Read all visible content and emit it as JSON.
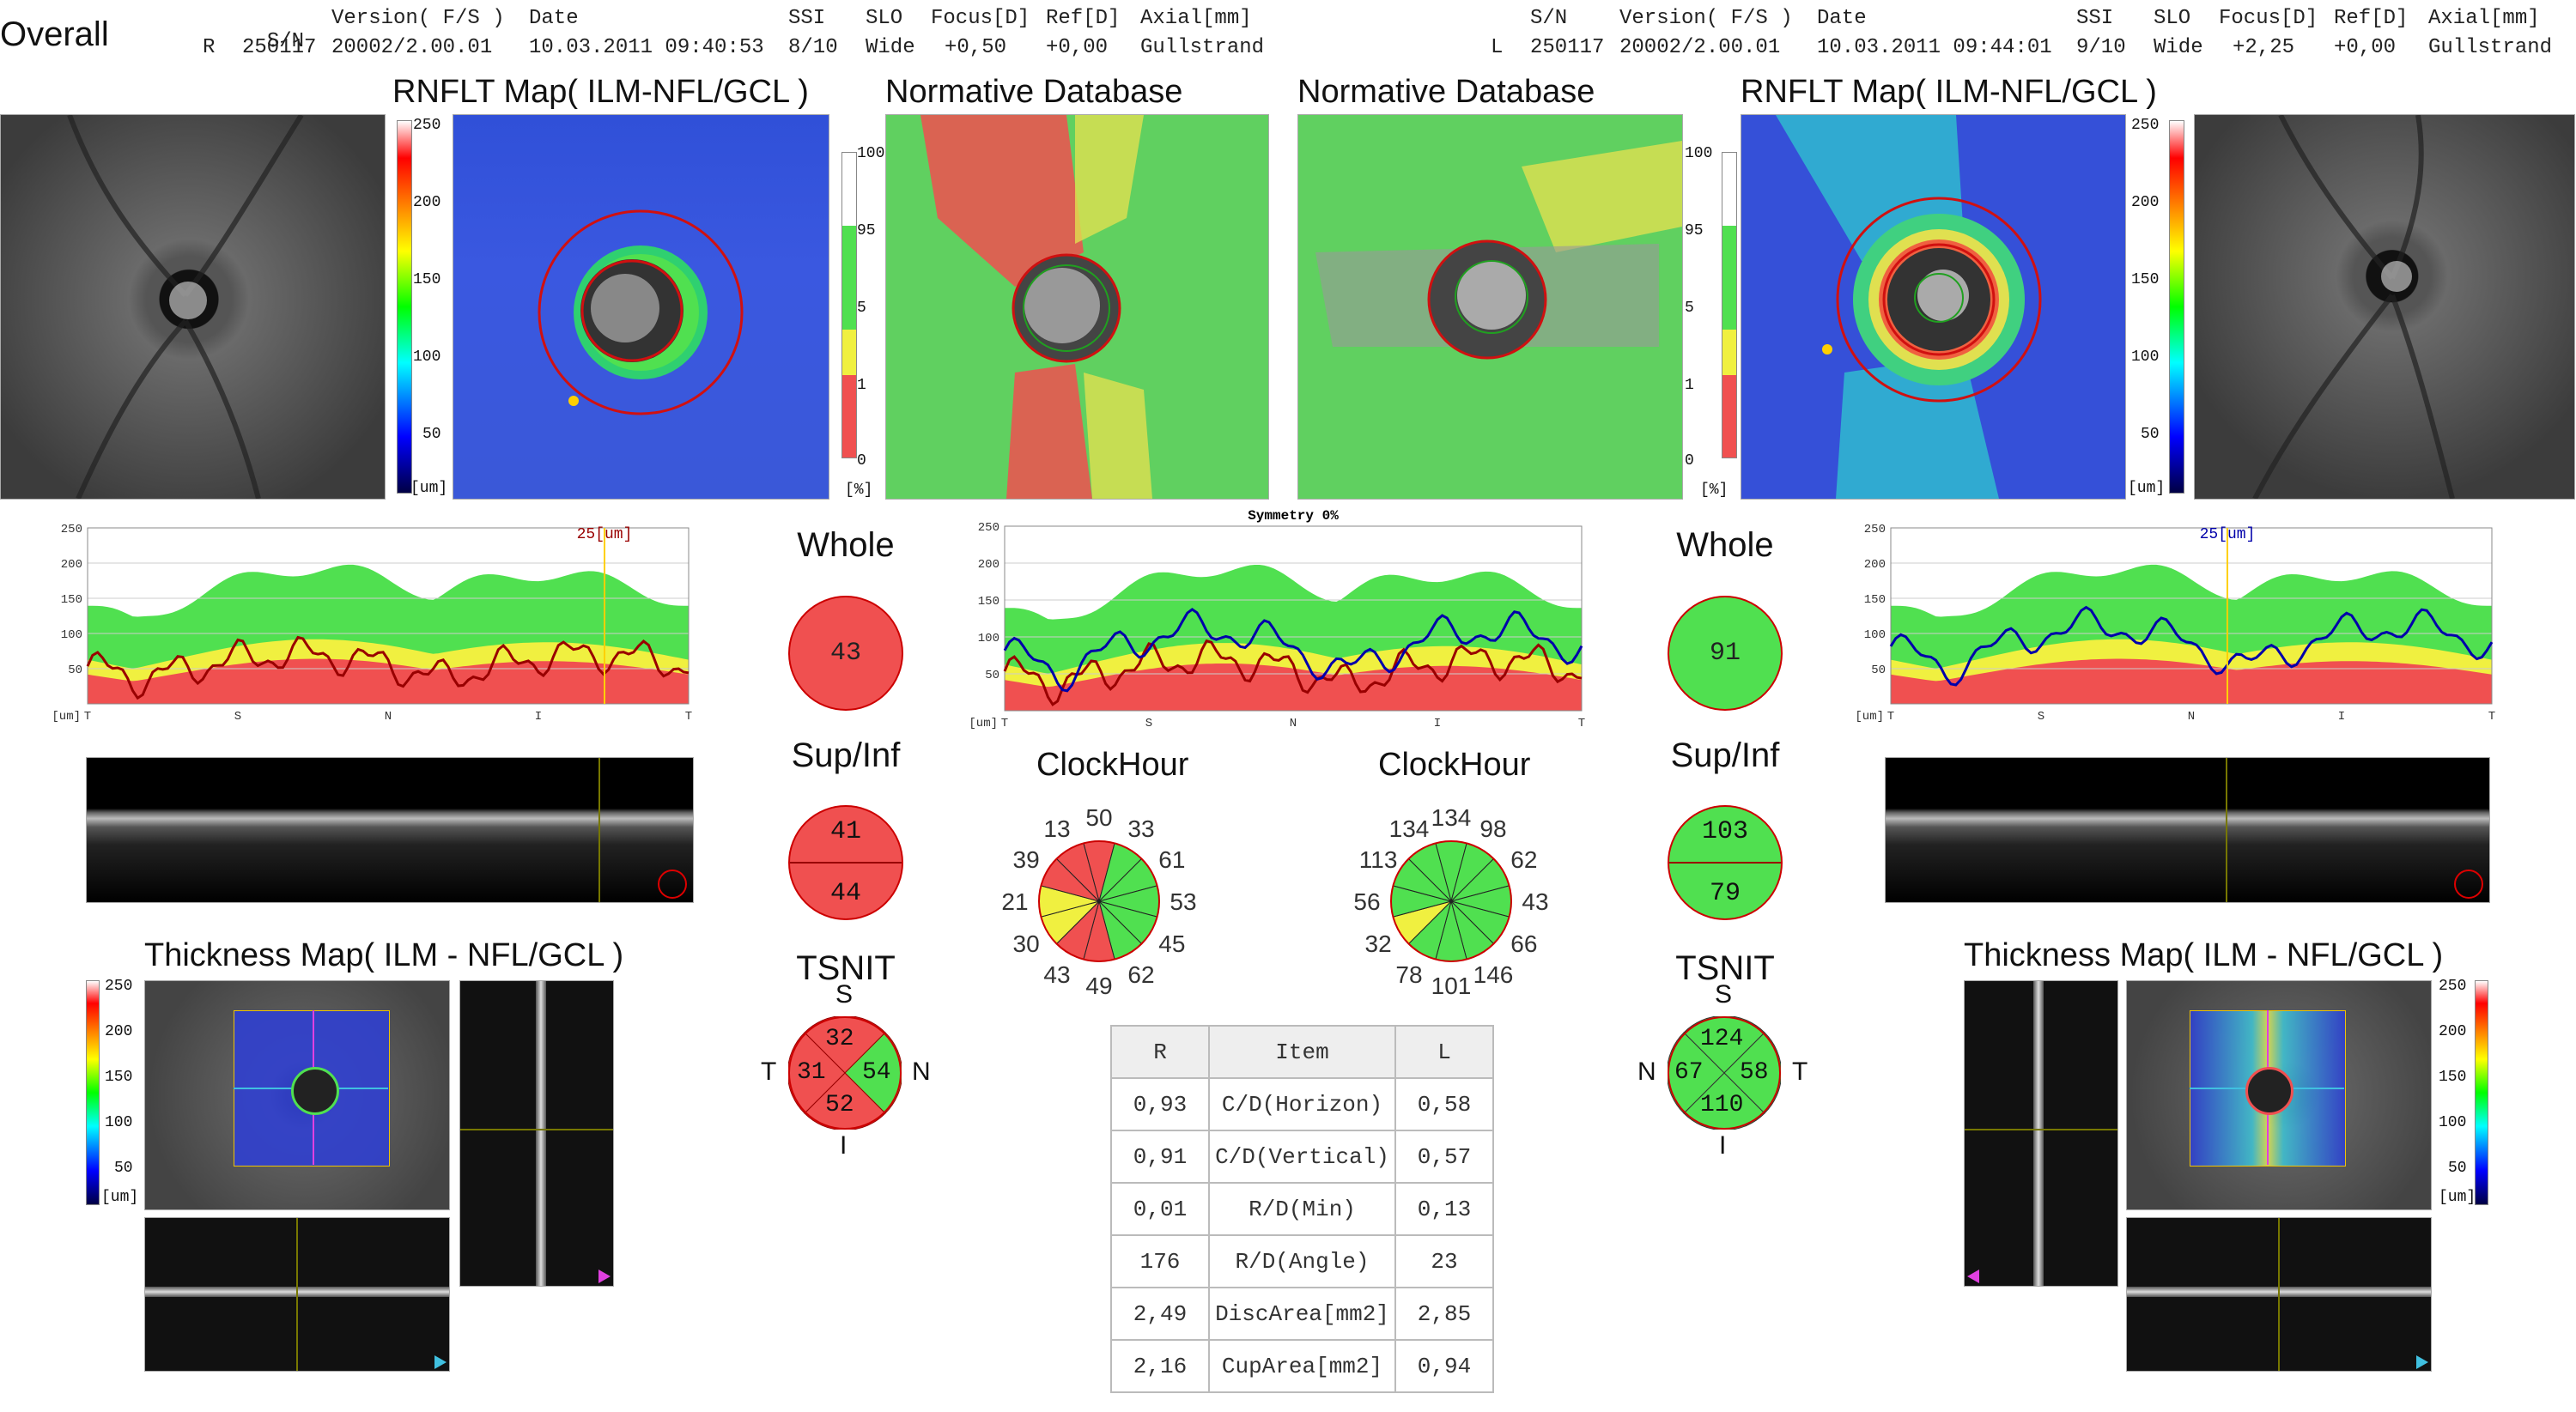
{
  "header": {
    "title": "Overall",
    "left": {
      "label_sn": "S/N",
      "label_version": "Version( F/S )",
      "label_date": "Date",
      "label_ssi": "SSI",
      "label_slo": "SLO",
      "label_focus": "Focus[D]",
      "label_ref": "Ref[D]",
      "label_axial": "Axial[mm]",
      "eye": "R",
      "sn": "250117",
      "version": "20002/2.00.01",
      "date": "10.03.2011 09:40:53",
      "ssi": "8/10",
      "slo": "Wide",
      "focus": "+0,50",
      "ref": "+0,00",
      "axial": "Gullstrand"
    },
    "right": {
      "label_sn": "S/N",
      "label_version": "Version( F/S )",
      "label_date": "Date",
      "label_ssi": "SSI",
      "label_slo": "SLO",
      "label_focus": "Focus[D]",
      "label_ref": "Ref[D]",
      "label_axial": "Axial[mm]",
      "eye": "L",
      "sn": "250117",
      "version": "20002/2.00.01",
      "date": "10.03.2011 09:44:01",
      "ssi": "9/10",
      "slo": "Wide",
      "focus": "+2,25",
      "ref": "+0,00",
      "axial": "Gullstrand"
    }
  },
  "panels": {
    "rnflt_left": "RNFLT Map( ILM-NFL/GCL )",
    "norm_left": "Normative Database",
    "norm_right": "Normative Database",
    "rnflt_right": "RNFLT Map( ILM-NFL/GCL )",
    "thick_left": "Thickness Map( ILM - NFL/GCL )",
    "thick_right": "Thickness Map( ILM - NFL/GCL )"
  },
  "scale_um": {
    "ticks": [
      "250",
      "200",
      "150",
      "100",
      "50"
    ],
    "unit": "[um]"
  },
  "scale_pct": {
    "ticks": [
      "100",
      "95",
      "5",
      "1",
      "0"
    ],
    "unit": "[%]"
  },
  "chart_data": [
    {
      "type": "area",
      "series": [
        {
          "name": "R",
          "color": "#990000"
        }
      ],
      "x_labels": [
        "T",
        "S",
        "N",
        "I",
        "T"
      ],
      "yticks": [
        "250",
        "200",
        "150",
        "100",
        "50"
      ],
      "ylim": [
        0,
        250
      ],
      "ylabel": "[um]",
      "cursor_label": "25",
      "cursor_unit": "[um]"
    },
    {
      "type": "area",
      "title": "Symmetry 0%",
      "x_labels": [
        "T",
        "S",
        "N",
        "I",
        "T"
      ],
      "yticks": [
        "250",
        "200",
        "150",
        "100",
        "50"
      ],
      "ylim": [
        0,
        250
      ],
      "ylabel": "[um]"
    },
    {
      "type": "area",
      "series": [
        {
          "name": "L",
          "color": "#0000aa"
        }
      ],
      "x_labels": [
        "T",
        "S",
        "N",
        "I",
        "T"
      ],
      "yticks": [
        "250",
        "200",
        "150",
        "100",
        "50"
      ],
      "ylim": [
        0,
        250
      ],
      "ylabel": "[um]",
      "cursor_label": "25",
      "cursor_unit": "[um]"
    }
  ],
  "summary_left": {
    "whole_label": "Whole",
    "whole": "43",
    "supinf_label": "Sup/Inf",
    "sup": "41",
    "inf": "44",
    "tsnit_label": "TSNIT",
    "s": "S",
    "t": "T",
    "n": "N",
    "i": "I",
    "tsnit_s": "32",
    "tsnit_t": "31",
    "tsnit_n": "54",
    "tsnit_i": "52"
  },
  "summary_right": {
    "whole_label": "Whole",
    "whole": "91",
    "supinf_label": "Sup/Inf",
    "sup": "103",
    "inf": "79",
    "tsnit_label": "TSNIT",
    "s": "S",
    "t": "T",
    "n": "N",
    "i": "I",
    "tsnit_s": "124",
    "tsnit_t": "58",
    "tsnit_n": "67",
    "tsnit_i": "110"
  },
  "clock_left": {
    "label": "ClockHour",
    "values": [
      "50",
      "33",
      "61",
      "53",
      "45",
      "62",
      "49",
      "43",
      "30",
      "21",
      "39",
      "13"
    ]
  },
  "clock_right": {
    "label": "ClockHour",
    "values": [
      "134",
      "98",
      "62",
      "43",
      "66",
      "146",
      "101",
      "78",
      "32",
      "56",
      "113",
      "134"
    ]
  },
  "colors": {
    "red": "#f05050",
    "yellow": "#f0f040",
    "green": "#50e050",
    "circle_border": "#c00000"
  },
  "table": {
    "headers": [
      "R",
      "Item",
      "L"
    ],
    "rows": [
      [
        "0,93",
        "C/D(Horizon)",
        "0,58"
      ],
      [
        "0,91",
        "C/D(Vertical)",
        "0,57"
      ],
      [
        "0,01",
        "R/D(Min)",
        "0,13"
      ],
      [
        "176",
        "R/D(Angle)",
        "23"
      ],
      [
        "2,49",
        "DiscArea[mm2]",
        "2,85"
      ],
      [
        "2,16",
        "CupArea[mm2]",
        "0,94"
      ]
    ]
  }
}
